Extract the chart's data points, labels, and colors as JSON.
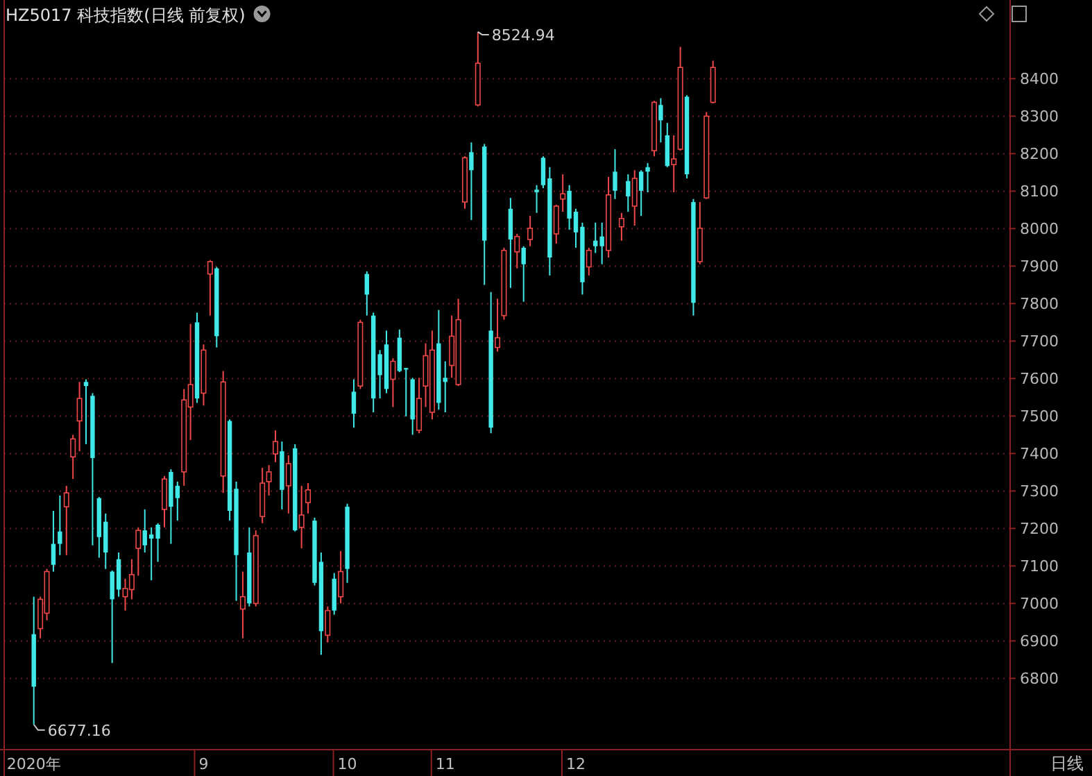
{
  "chart_data": {
    "type": "candlestick",
    "title": "HZ5017 科技指数(日线 前复权)",
    "categories": [
      "2020年",
      null,
      null,
      null,
      null,
      null,
      null,
      null,
      null,
      null,
      null,
      null,
      null,
      null,
      null,
      null,
      null,
      null,
      null,
      null,
      null,
      null,
      null,
      null,
      null,
      null,
      "9",
      null,
      null,
      null,
      null,
      null,
      null,
      null,
      null,
      null,
      null,
      null,
      null,
      null,
      null,
      null,
      null,
      null,
      null,
      null,
      null,
      null,
      "10",
      null,
      null,
      null,
      null,
      null,
      null,
      null,
      null,
      null,
      null,
      null,
      null,
      null,
      null,
      "11",
      null,
      null,
      null,
      null,
      null,
      null,
      null,
      null,
      null,
      null,
      null,
      null,
      null,
      null,
      null,
      null,
      null,
      null,
      null,
      "12",
      null,
      null,
      null,
      null,
      null,
      null,
      null,
      null,
      null,
      null,
      null,
      null,
      null,
      null,
      null,
      null,
      null,
      null,
      null,
      null,
      null,
      null,
      null,
      null,
      null,
      null,
      null,
      null,
      null,
      null,
      null,
      null,
      null,
      null,
      null,
      null,
      null,
      null,
      null,
      null,
      null,
      null,
      null,
      null,
      null,
      null,
      null,
      null,
      null,
      null,
      null,
      null,
      null,
      null,
      null,
      null,
      null,
      null,
      null,
      null,
      null,
      null,
      null,
      null,
      null,
      null
    ],
    "ohlc": [
      [
        6918,
        7018,
        6677.16,
        6778
      ],
      [
        6933,
        7018,
        6907,
        7011
      ],
      [
        6974,
        7092,
        6955,
        7085
      ],
      [
        7159,
        7247,
        7085,
        7103
      ],
      [
        7192,
        7288,
        7129,
        7159
      ],
      [
        7258,
        7314,
        7129,
        7295
      ],
      [
        7391,
        7450,
        7332,
        7439
      ],
      [
        7487,
        7591,
        7406,
        7547
      ],
      [
        7591,
        7598,
        7425,
        7580
      ],
      [
        7554,
        7561,
        7155,
        7388
      ],
      [
        7281,
        7284,
        7122,
        7177
      ],
      [
        7218,
        7240,
        7092,
        7136
      ],
      [
        7085,
        7088,
        6841,
        7011
      ],
      [
        7118,
        7136,
        7018,
        7037
      ],
      [
        7018,
        7066,
        6981,
        7040
      ],
      [
        7037,
        7118,
        7011,
        7077
      ],
      [
        7147,
        7203,
        7074,
        7195
      ],
      [
        7195,
        7251,
        7136,
        7155
      ],
      [
        7184,
        7203,
        7062,
        7173
      ],
      [
        7210,
        7214,
        7111,
        7173
      ],
      [
        7251,
        7340,
        7203,
        7332
      ],
      [
        7351,
        7358,
        7159,
        7258
      ],
      [
        7314,
        7325,
        7221,
        7281
      ],
      [
        7351,
        7572,
        7314,
        7543
      ],
      [
        7524,
        7746,
        7436,
        7584
      ],
      [
        7750,
        7776,
        7535,
        7547
      ],
      [
        7561,
        7691,
        7528,
        7676
      ],
      [
        7879,
        7916,
        7768,
        7912
      ],
      [
        7894,
        7898,
        7683,
        7713
      ],
      [
        7340,
        7620,
        7295,
        7591
      ],
      [
        7487,
        7491,
        7221,
        7247
      ],
      [
        7306,
        7325,
        7007,
        7129
      ],
      [
        6985,
        7085,
        6907,
        7018
      ],
      [
        7136,
        7203,
        6992,
        7000
      ],
      [
        7000,
        7195,
        6992,
        7181
      ],
      [
        7232,
        7362,
        7214,
        7321
      ],
      [
        7325,
        7369,
        7288,
        7351
      ],
      [
        7399,
        7462,
        7377,
        7432
      ],
      [
        7406,
        7432,
        7251,
        7303
      ],
      [
        7314,
        7395,
        7240,
        7373
      ],
      [
        7414,
        7425,
        7192,
        7195
      ],
      [
        7203,
        7314,
        7147,
        7236
      ],
      [
        7269,
        7321,
        7240,
        7303
      ],
      [
        7221,
        7229,
        7048,
        7055
      ],
      [
        7111,
        7136,
        6863,
        6926
      ],
      [
        6915,
        6992,
        6896,
        6981
      ],
      [
        7066,
        7081,
        6970,
        6981
      ],
      [
        7018,
        7140,
        7000,
        7085
      ],
      [
        7258,
        7266,
        7055,
        7092
      ],
      [
        7565,
        7598,
        7469,
        7506
      ],
      [
        7580,
        7757,
        7572,
        7750
      ],
      [
        7879,
        7886,
        7768,
        7824
      ],
      [
        7768,
        7776,
        7510,
        7547
      ],
      [
        7665,
        7676,
        7547,
        7609
      ],
      [
        7691,
        7728,
        7561,
        7572
      ],
      [
        7598,
        7654,
        7524,
        7646
      ],
      [
        7709,
        7731,
        7617,
        7620
      ],
      [
        7628,
        7628,
        7499,
        7624
      ],
      [
        7598,
        7602,
        7450,
        7491
      ],
      [
        7462,
        7602,
        7454,
        7547
      ],
      [
        7580,
        7694,
        7524,
        7661
      ],
      [
        7510,
        7728,
        7491,
        7676
      ],
      [
        7694,
        7783,
        7517,
        7535
      ],
      [
        7602,
        7646,
        7510,
        7591
      ],
      [
        7635,
        7768,
        7602,
        7713
      ],
      [
        7584,
        7813,
        7580,
        7757
      ],
      [
        8071,
        8193,
        8053,
        8189
      ],
      [
        8204,
        8230,
        8023,
        8156
      ],
      [
        8330,
        8524.94,
        8326,
        8441
      ],
      [
        8219,
        8226,
        7850,
        7968
      ],
      [
        7728,
        7831,
        7454,
        7469
      ],
      [
        7683,
        7813,
        7672,
        7709
      ],
      [
        7768,
        7949,
        7757,
        7942
      ],
      [
        8053,
        8082,
        7842,
        7971
      ],
      [
        7938,
        7986,
        7894,
        7979
      ],
      [
        7949,
        7953,
        7805,
        7905
      ],
      [
        7971,
        8034,
        7953,
        8001
      ],
      [
        8104,
        8116,
        8042,
        8097
      ],
      [
        8189,
        8193,
        8108,
        8116
      ],
      [
        8134,
        8164,
        7875,
        7923
      ],
      [
        7986,
        8064,
        7960,
        8060
      ],
      [
        8079,
        8145,
        8045,
        8093
      ],
      [
        8101,
        8116,
        7997,
        8027
      ],
      [
        8045,
        8053,
        7949,
        7990
      ],
      [
        8005,
        8016,
        7824,
        7857
      ],
      [
        7898,
        7949,
        7875,
        7942
      ],
      [
        7968,
        8016,
        7935,
        7953
      ],
      [
        7979,
        8016,
        7905,
        7953
      ],
      [
        7942,
        8138,
        7923,
        8090
      ],
      [
        8152,
        8212,
        8079,
        8101
      ],
      [
        8005,
        8042,
        7968,
        8027
      ],
      [
        8127,
        8145,
        8045,
        8086
      ],
      [
        8060,
        8156,
        8008,
        8134
      ],
      [
        8152,
        8156,
        8034,
        8101
      ],
      [
        8164,
        8175,
        8097,
        8152
      ],
      [
        8208,
        8341,
        8193,
        8337
      ],
      [
        8330,
        8348,
        8230,
        8289
      ],
      [
        8249,
        8282,
        8164,
        8167
      ],
      [
        8171,
        8249,
        8097,
        8186
      ],
      [
        8212,
        8485,
        8208,
        8430
      ],
      [
        8352,
        8356,
        8134,
        8145
      ],
      [
        8071,
        8079,
        7768,
        7802
      ],
      [
        7912,
        8071,
        7905,
        8001
      ],
      [
        8082,
        8311,
        8079,
        8300
      ],
      [
        8337,
        8448,
        8334,
        8430
      ],
      null,
      null,
      null,
      null,
      null,
      null,
      null,
      null,
      null,
      null,
      null,
      null,
      null,
      null,
      null,
      null,
      null,
      null,
      null,
      null,
      null,
      null,
      null,
      null,
      null,
      null,
      null,
      null,
      null,
      null,
      null,
      null,
      null,
      null,
      null,
      null,
      null,
      null,
      null,
      null,
      null,
      null,
      null,
      null,
      null
    ],
    "colors": [
      "#40e8e8",
      "#f04848",
      "#f04848",
      "#40e8e8",
      "#40e8e8",
      "#f04848",
      "#f04848",
      "#f04848",
      "#40e8e8",
      "#40e8e8",
      "#40e8e8",
      "#40e8e8",
      "#40e8e8",
      "#40e8e8",
      "#f04848",
      "#f04848",
      "#f04848",
      "#40e8e8",
      "#40e8e8",
      "#40e8e8",
      "#f04848",
      "#40e8e8",
      "#40e8e8",
      "#f04848",
      "#f04848",
      "#40e8e8",
      "#f04848",
      "#f04848",
      "#40e8e8",
      "#f04848",
      "#40e8e8",
      "#40e8e8",
      "#f04848",
      "#40e8e8",
      "#f04848",
      "#f04848",
      "#f04848",
      "#f04848",
      "#40e8e8",
      "#f04848",
      "#40e8e8",
      "#f04848",
      "#f04848",
      "#40e8e8",
      "#40e8e8",
      "#f04848",
      "#40e8e8",
      "#f04848",
      "#40e8e8",
      "#40e8e8",
      "#f04848",
      "#40e8e8",
      "#40e8e8",
      "#40e8e8",
      "#40e8e8",
      "#f04848",
      "#40e8e8",
      "#40e8e8",
      "#40e8e8",
      "#f04848",
      "#f04848",
      "#f04848",
      "#40e8e8",
      "#40e8e8",
      "#f04848",
      "#f04848",
      "#f04848",
      "#40e8e8",
      "#f04848",
      "#40e8e8",
      "#40e8e8",
      "#f04848",
      "#f04848",
      "#40e8e8",
      "#f04848",
      "#40e8e8",
      "#f04848",
      "#40e8e8",
      "#40e8e8",
      "#40e8e8",
      "#f04848",
      "#f04848",
      "#40e8e8",
      "#40e8e8",
      "#40e8e8",
      "#f04848",
      "#40e8e8",
      "#40e8e8",
      "#f04848",
      "#40e8e8",
      "#f04848",
      "#40e8e8",
      "#f04848",
      "#40e8e8",
      "#40e8e8",
      "#f04848",
      "#40e8e8",
      "#40e8e8",
      "#f04848",
      "#f04848",
      "#40e8e8",
      "#40e8e8",
      "#f04848",
      "#f04848",
      "#f04848",
      null,
      null,
      null,
      null,
      null,
      null,
      null,
      null,
      null,
      null,
      null,
      null,
      null,
      null,
      null,
      null,
      null,
      null,
      null,
      null,
      null,
      null,
      null,
      null,
      null,
      null,
      null,
      null,
      null,
      null,
      null,
      null,
      null,
      null,
      null,
      null,
      null,
      null,
      null,
      null,
      null,
      null,
      null,
      null,
      null
    ],
    "ylim": [
      6610,
      8610
    ],
    "yticks": [
      6800,
      6900,
      7000,
      7100,
      7200,
      7300,
      7400,
      7500,
      7600,
      7700,
      7800,
      7900,
      8000,
      8100,
      8200,
      8300,
      8400
    ],
    "grid": "y",
    "annotations": [
      "8524.94",
      "6677.16",
      "日线"
    ]
  }
}
